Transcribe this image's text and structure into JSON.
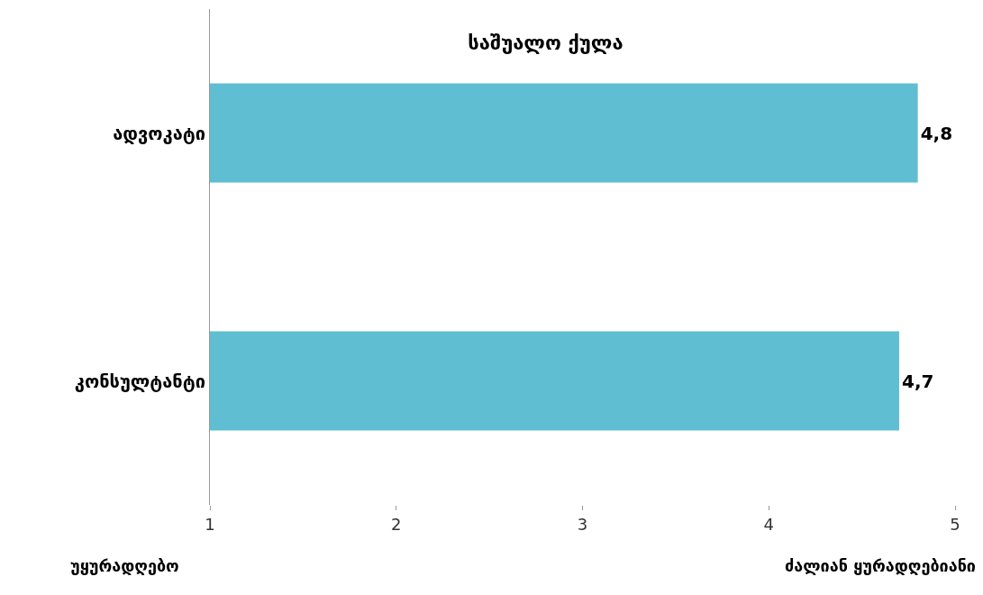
{
  "chart_data": {
    "type": "bar",
    "orientation": "horizontal",
    "title": "საშუალო ქულა",
    "categories": [
      "ადვოკატი",
      "კონსულტანტი"
    ],
    "values": [
      4.8,
      4.7
    ],
    "color": "#5fbed2",
    "value_labels": [
      "4,8",
      "4,7"
    ],
    "xlim": [
      1,
      5
    ],
    "xticks": [
      1,
      2,
      3,
      4,
      5
    ],
    "grid": false,
    "legend": false,
    "annotations": [
      "უყურადღებო",
      "ძალიან ყურადღებიანი"
    ]
  }
}
